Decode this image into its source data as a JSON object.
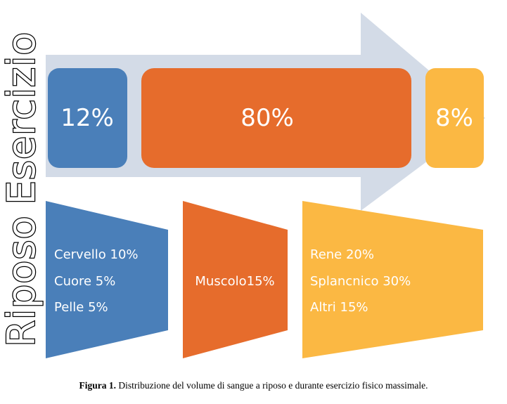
{
  "labels": {
    "exercise": "Esercizio",
    "rest": "Riposo"
  },
  "exercise_boxes": [
    {
      "value": "12%",
      "color": "#4a7fb9"
    },
    {
      "value": "80%",
      "color": "#e66c2c"
    },
    {
      "value": "8%",
      "color": "#fbb843"
    }
  ],
  "rest_groups": [
    {
      "color": "#4a7fb9",
      "lines": [
        "Cervello 10%",
        "Cuore 5%",
        "Pelle 5%"
      ]
    },
    {
      "color": "#e66c2c",
      "lines": [
        "Muscolo15%"
      ]
    },
    {
      "color": "#fbb843",
      "lines": [
        "Rene 20%",
        "Splancnico 30%",
        "Altri 15%"
      ]
    }
  ],
  "colors": {
    "arrow": "#d3dbe7",
    "blue": "#4a7fb9",
    "orange": "#e66c2c",
    "yellow": "#fbb843"
  },
  "caption": {
    "label": "Figura 1.",
    "text": " Distribuzione del volume di sangue a riposo e durante esercizio fisico massimale."
  }
}
